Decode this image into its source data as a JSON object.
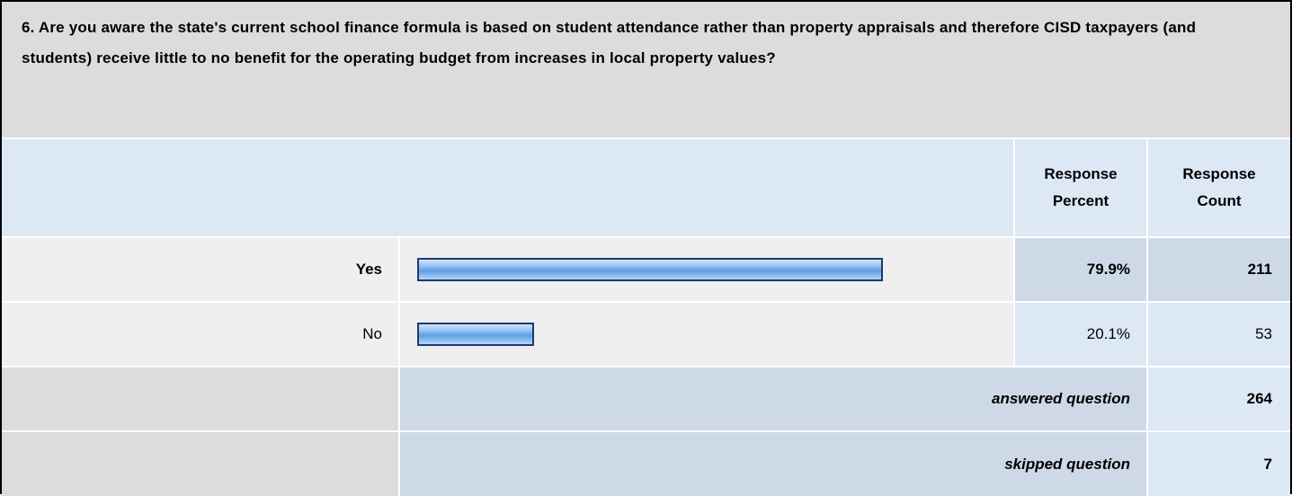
{
  "question": "6. Are you aware the state's current school finance formula is based on student attendance rather than property appraisals and therefore CISD taxpayers (and students) receive little to no benefit for the operating budget from increases in local property values?",
  "table": {
    "headers": [
      "Response Percent",
      "Response Count"
    ],
    "rows": [
      {
        "label": "Yes",
        "percent": {
          "value": 79.9,
          "label": "79.9%"
        },
        "count": 211
      },
      {
        "label": "No",
        "percent": {
          "value": 20.1,
          "label": "20.1%"
        },
        "count": 53
      }
    ],
    "answered": {
      "label": "answered question",
      "count": 264
    },
    "skipped": {
      "label": "skipped question",
      "count": 7
    }
  }
}
